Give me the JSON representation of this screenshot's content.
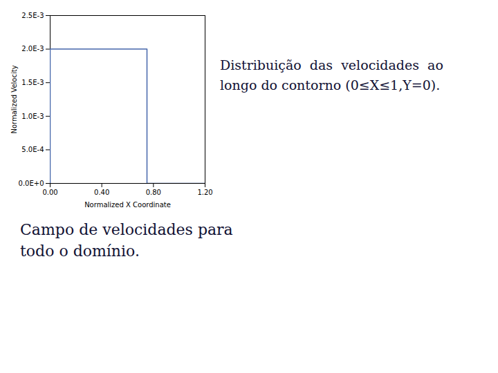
{
  "chart_data": {
    "type": "line",
    "x": [
      0.0,
      0.0,
      0.75,
      0.75,
      0.75,
      1.2
    ],
    "values": [
      0.0,
      0.002,
      0.002,
      0.002,
      0.0,
      0.0
    ],
    "color": "#4466aa",
    "xlabel": "Normalized X Coordinate",
    "ylabel": "Normalized Velocity",
    "xlim": [
      0.0,
      1.2
    ],
    "ylim": [
      0.0,
      0.0025
    ],
    "xticks": [
      {
        "value": 0.0,
        "label": "0.00"
      },
      {
        "value": 0.4,
        "label": "0.40"
      },
      {
        "value": 0.8,
        "label": "0.80"
      },
      {
        "value": 1.2,
        "label": "1.20"
      }
    ],
    "yticks": [
      {
        "value": 0.0,
        "label": "0.0E+0"
      },
      {
        "value": 0.0005,
        "label": "5.0E-4"
      },
      {
        "value": 0.001,
        "label": "1.0E-3"
      },
      {
        "value": 0.0015,
        "label": "1.5E-3"
      },
      {
        "value": 0.002,
        "label": "2.0E-3"
      },
      {
        "value": 0.0025,
        "label": "2.5E-3"
      }
    ],
    "grid": false,
    "annotations": [
      "Distribuição  das  velocidades  ao\nlongo do contorno (0≤X≤1,Y=0).",
      "Campo de velocidades para\ntodo o domínio."
    ]
  }
}
